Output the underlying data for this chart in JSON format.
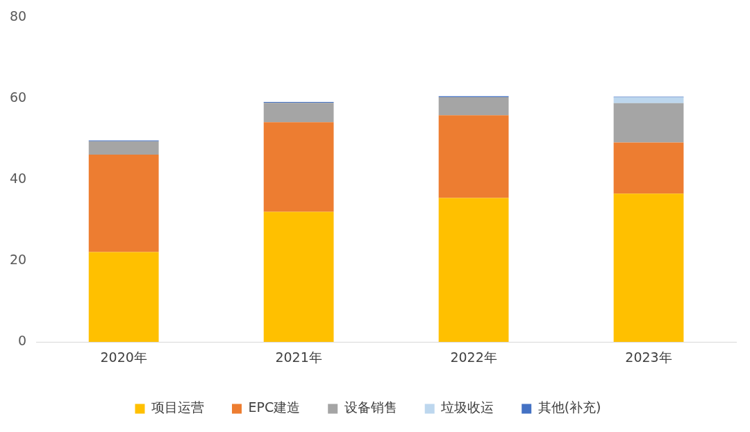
{
  "chart_data": {
    "type": "bar",
    "stacked": true,
    "categories": [
      "2020年",
      "2021年",
      "2022年",
      "2023年"
    ],
    "series": [
      {
        "name": "项目运营",
        "color": "#ffc000",
        "values": [
          22.2,
          32.1,
          35.5,
          36.6
        ]
      },
      {
        "name": "EPC建造",
        "color": "#ed7d31",
        "values": [
          24.0,
          22.1,
          20.4,
          12.6
        ]
      },
      {
        "name": "设备销售",
        "color": "#a5a5a5",
        "values": [
          3.3,
          4.8,
          4.5,
          9.7
        ]
      },
      {
        "name": "垃圾收运",
        "color": "#bdd7ee",
        "values": [
          0,
          0,
          0,
          1.4
        ]
      },
      {
        "name": "其他(补充)",
        "color": "#4472c4",
        "values": [
          0.2,
          0.2,
          0.2,
          0.2
        ]
      }
    ],
    "ylim": [
      0,
      80
    ],
    "yticks": [
      0,
      20,
      40,
      60,
      80
    ],
    "grid": false,
    "legend": "bottom"
  }
}
